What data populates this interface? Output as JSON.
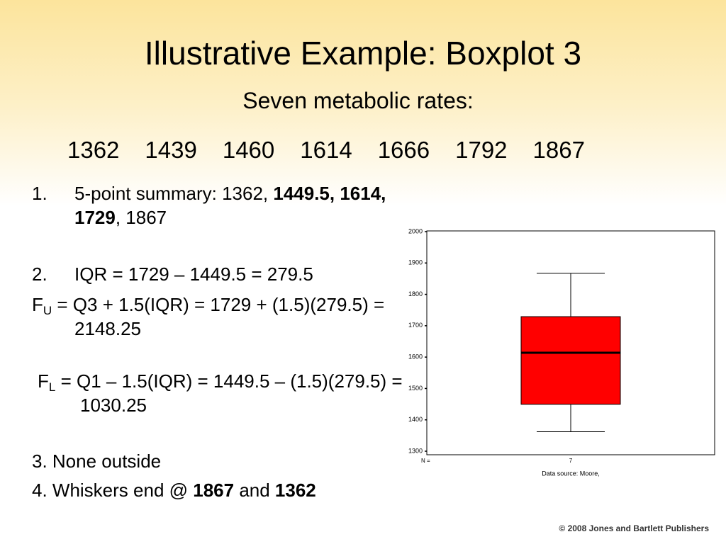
{
  "title": "Illustrative Example: Boxplot 3",
  "subtitle": "Seven metabolic rates:",
  "rates": [
    1362,
    1439,
    1460,
    1614,
    1666,
    1792,
    1867
  ],
  "items": [
    {
      "marker": "1.",
      "parts": [
        {
          "text": "5-point summary: 1362, "
        },
        {
          "text": "1449.5, 1614, 1729",
          "bold": true
        },
        {
          "text": ", 1867"
        }
      ]
    },
    {
      "marker": "2.",
      "parts": [
        {
          "text": "IQR = 1729 – 1449.5 = 279.5"
        }
      ]
    },
    {
      "parts": [
        {
          "text": "F"
        },
        {
          "text": "U",
          "sub": true
        },
        {
          "text": " = Q3 + 1.5(IQR) = 1729 + (1.5)(279.5) = 2148.25"
        }
      ]
    },
    {
      "parts": [
        {
          "text": "F"
        },
        {
          "text": "L",
          "sub": true
        },
        {
          "text": " = Q1 – 1.5(IQR) = 1449.5 – (1.5)(279.5) = 1030.25"
        }
      ]
    },
    {
      "parts": [
        {
          "text": "3. None outside"
        }
      ]
    },
    {
      "parts": [
        {
          "text": "4. Whiskers end @ "
        },
        {
          "text": "1867",
          "bold": true
        },
        {
          "text": " and "
        },
        {
          "text": "1362",
          "bold": true
        }
      ]
    }
  ],
  "chart_data": {
    "type": "boxplot",
    "boxes": [
      {
        "min": 1362,
        "q1": 1449.5,
        "median": 1614,
        "q3": 1729,
        "max": 1867
      }
    ],
    "color": "#ff0000",
    "ylim": [
      1300,
      2000
    ],
    "yticks": [
      1300,
      1400,
      1500,
      1600,
      1700,
      1800,
      1900,
      2000
    ],
    "n_label": "N =",
    "n_values": [
      7
    ],
    "source": "Data source: Moore,"
  },
  "footer": "© 2008 Jones and Bartlett Publishers"
}
